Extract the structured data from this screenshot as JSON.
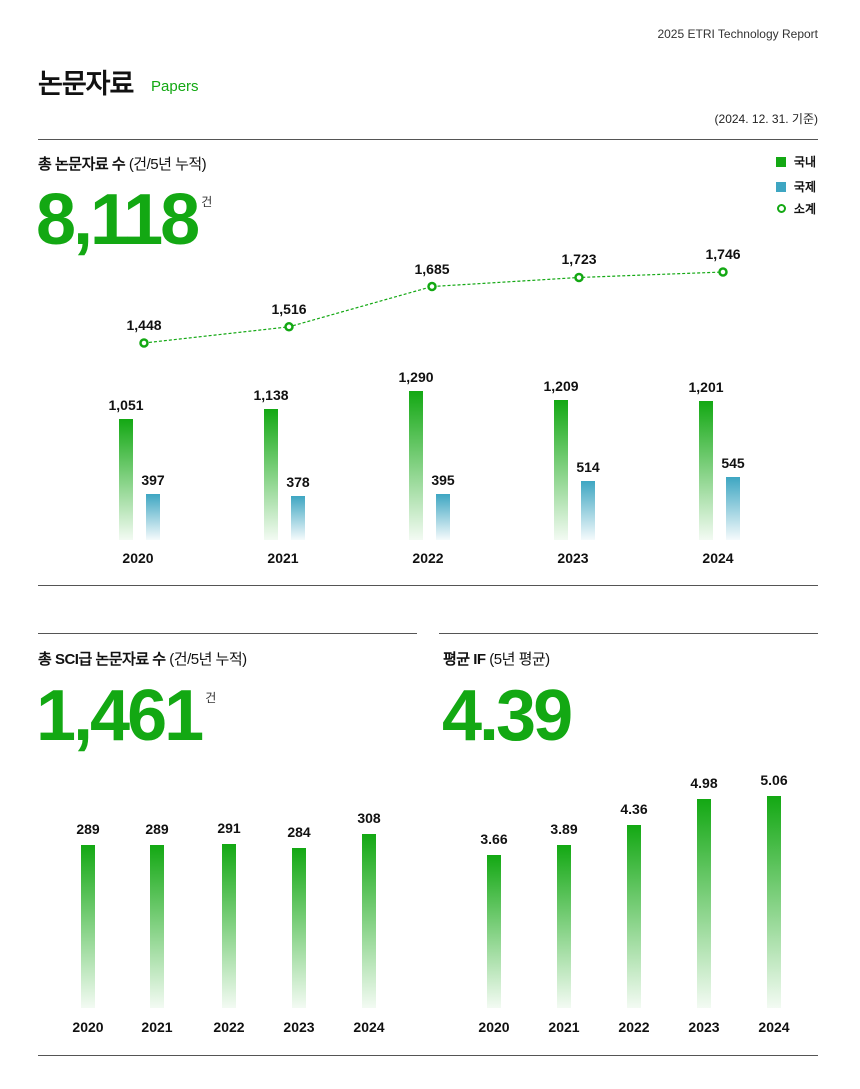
{
  "header": {
    "report": "2025 ETRI Technology Report",
    "title": "논문자료",
    "subtitle": "Papers",
    "date": "(2024. 12. 31. 기준)"
  },
  "total": {
    "label": "총 논문자료 수",
    "label_note": "(건/5년 누적)",
    "value": "8,118",
    "unit": "건"
  },
  "sci": {
    "label": "총 SCI급 논문자료 수",
    "label_note": "(건/5년 누적)",
    "value": "1,461",
    "unit": "건"
  },
  "if": {
    "label": "평균 IF",
    "label_note": "(5년 평균)",
    "value": "4.39"
  },
  "colors": {
    "domestic": "#13a813",
    "international": "#3ea6c2"
  },
  "chart_data": [
    {
      "type": "bar",
      "categories": [
        "2020",
        "2021",
        "2022",
        "2023",
        "2024"
      ],
      "series": [
        {
          "name": "국내",
          "values": [
            1051,
            1138,
            1290,
            1209,
            1201
          ]
        },
        {
          "name": "국제",
          "values": [
            397,
            378,
            395,
            514,
            545
          ]
        },
        {
          "name": "소계",
          "type": "line",
          "values": [
            1448,
            1516,
            1685,
            1723,
            1746
          ]
        }
      ],
      "legend": [
        "국내",
        "국제",
        "소계"
      ],
      "legend_position": "top-right"
    },
    {
      "type": "bar",
      "categories": [
        "2020",
        "2021",
        "2022",
        "2023",
        "2024"
      ],
      "values": [
        289,
        289,
        291,
        284,
        308
      ]
    },
    {
      "type": "bar",
      "categories": [
        "2020",
        "2021",
        "2022",
        "2023",
        "2024"
      ],
      "values": [
        3.66,
        3.89,
        4.36,
        4.98,
        5.06
      ]
    }
  ]
}
